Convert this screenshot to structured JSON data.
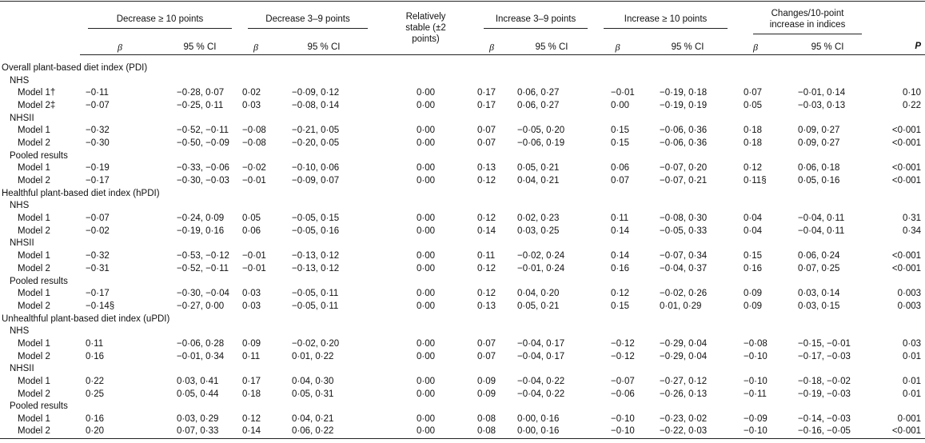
{
  "table": {
    "header": {
      "groups": [
        "Decrease ≥ 10 points",
        "Decrease 3–9 points",
        "Relatively stable (±2 points)",
        "Increase 3–9 points",
        "Increase ≥ 10 points",
        "Changes/10-point increase in indices",
        "P"
      ],
      "columns": [
        "β",
        "95 % CI",
        "β",
        "95 % CI",
        "β",
        "95 % CI",
        "β",
        "95 % CI",
        "β",
        "95 % CI"
      ]
    },
    "sections": [
      {
        "title": "Overall plant-based diet index (PDI)",
        "groups": [
          {
            "name": "NHS",
            "rows": [
              {
                "label": "Model 1†",
                "cells": [
                  "−0·11",
                  "−0·28, 0·07",
                  "0·02",
                  "−0·09, 0·12",
                  "0·00",
                  "0·17",
                  "0·06, 0·27",
                  "−0·01",
                  "−0·19, 0·18",
                  "0·07",
                  "−0·01, 0·14",
                  "0·10"
                ]
              },
              {
                "label": "Model 2‡",
                "cells": [
                  "−0·07",
                  "−0·25, 0·11",
                  "0·03",
                  "−0·08, 0·14",
                  "0·00",
                  "0·17",
                  "0·06, 0·27",
                  "0·00",
                  "−0·19, 0·19",
                  "0·05",
                  "−0·03, 0·13",
                  "0·22"
                ]
              }
            ]
          },
          {
            "name": "NHSII",
            "rows": [
              {
                "label": "Model 1",
                "cells": [
                  "−0·32",
                  "−0·52, −0·11",
                  "−0·08",
                  "−0·21, 0·05",
                  "0·00",
                  "0·07",
                  "−0·05, 0·20",
                  "0·15",
                  "−0·06, 0·36",
                  "0·18",
                  "0·09, 0·27",
                  "<0·001"
                ]
              },
              {
                "label": "Model 2",
                "cells": [
                  "−0·30",
                  "−0·50, −0·09",
                  "−0·08",
                  "−0·20, 0·05",
                  "0·00",
                  "0·07",
                  "−0·06, 0·19",
                  "0·15",
                  "−0·06, 0·36",
                  "0·18",
                  "0·09, 0·27",
                  "<0·001"
                ]
              }
            ]
          },
          {
            "name": "Pooled results",
            "rows": [
              {
                "label": "Model 1",
                "cells": [
                  "−0·19",
                  "−0·33, −0·06",
                  "−0·02",
                  "−0·10, 0·06",
                  "0·00",
                  "0·13",
                  "0·05, 0·21",
                  "0·06",
                  "−0·07, 0·20",
                  "0·12",
                  "0·06, 0·18",
                  "<0·001"
                ]
              },
              {
                "label": "Model 2",
                "cells": [
                  "−0·17",
                  "−0·30, −0·03",
                  "−0·01",
                  "−0·09, 0·07",
                  "0·00",
                  "0·12",
                  "0·04, 0·21",
                  "0·07",
                  "−0·07, 0·21",
                  "0·11§",
                  "0·05, 0·16",
                  "<0·001"
                ]
              }
            ]
          }
        ]
      },
      {
        "title": "Healthful plant-based diet index (hPDI)",
        "groups": [
          {
            "name": "NHS",
            "rows": [
              {
                "label": "Model 1",
                "cells": [
                  "−0·07",
                  "−0·24, 0·09",
                  "0·05",
                  "−0·05, 0·15",
                  "0·00",
                  "0·12",
                  "0·02, 0·23",
                  "0·11",
                  "−0·08, 0·30",
                  "0·04",
                  "−0·04, 0·11",
                  "0·31"
                ]
              },
              {
                "label": "Model 2",
                "cells": [
                  "−0·02",
                  "−0·19, 0·16",
                  "0·06",
                  "−0·05, 0·16",
                  "0·00",
                  "0·14",
                  "0·03, 0·25",
                  "0·14",
                  "−0·05, 0·33",
                  "0·04",
                  "−0·04, 0·11",
                  "0·34"
                ]
              }
            ]
          },
          {
            "name": "NHSII",
            "rows": [
              {
                "label": "Model 1",
                "cells": [
                  "−0·32",
                  "−0·53, −0·12",
                  "−0·01",
                  "−0·13, 0·12",
                  "0·00",
                  "0·11",
                  "−0·02, 0·24",
                  "0·14",
                  "−0·07, 0·34",
                  "0·15",
                  "0·06, 0·24",
                  "<0·001"
                ]
              },
              {
                "label": "Model 2",
                "cells": [
                  "−0·31",
                  "−0·52, −0·11",
                  "−0·01",
                  "−0·13, 0·12",
                  "0·00",
                  "0·12",
                  "−0·01, 0·24",
                  "0·16",
                  "−0·04, 0·37",
                  "0·16",
                  "0·07, 0·25",
                  "<0·001"
                ]
              }
            ]
          },
          {
            "name": "Pooled results",
            "rows": [
              {
                "label": "Model 1",
                "cells": [
                  "−0·17",
                  "−0·30, −0·04",
                  "0·03",
                  "−0·05, 0·11",
                  "0·00",
                  "0·12",
                  "0·04, 0·20",
                  "0·12",
                  "−0·02, 0·26",
                  "0·09",
                  "0·03, 0·14",
                  "0·003"
                ]
              },
              {
                "label": "Model 2",
                "cells": [
                  "−0·14§",
                  "−0·27, 0·00",
                  "0·03",
                  "−0·05, 0·11",
                  "0·00",
                  "0·13",
                  "0·05, 0·21",
                  "0·15",
                  "0·01, 0·29",
                  "0·09",
                  "0·03, 0·15",
                  "0·003"
                ]
              }
            ]
          }
        ]
      },
      {
        "title": "Unhealthful plant-based diet index (uPDI)",
        "groups": [
          {
            "name": "NHS",
            "rows": [
              {
                "label": "Model 1",
                "cells": [
                  "0·11",
                  "−0·06, 0·28",
                  "0·09",
                  "−0·02, 0·20",
                  "0·00",
                  "0·07",
                  "−0·04, 0·17",
                  "−0·12",
                  "−0·29, 0·04",
                  "−0·08",
                  "−0·15, −0·01",
                  "0·03"
                ]
              },
              {
                "label": "Model 2",
                "cells": [
                  "0·16",
                  "−0·01, 0·34",
                  "0·11",
                  "0·01, 0·22",
                  "0·00",
                  "0·07",
                  "−0·04, 0·17",
                  "−0·12",
                  "−0·29, 0·04",
                  "−0·10",
                  "−0·17, −0·03",
                  "0·01"
                ]
              }
            ]
          },
          {
            "name": "NHSII",
            "rows": [
              {
                "label": "Model 1",
                "cells": [
                  "0·22",
                  "0·03, 0·41",
                  "0·17",
                  "0·04, 0·30",
                  "0·00",
                  "0·09",
                  "−0·04, 0·22",
                  "−0·07",
                  "−0·27, 0·12",
                  "−0·10",
                  "−0·18, −0·02",
                  "0·01"
                ]
              },
              {
                "label": "Model 2",
                "cells": [
                  "0·25",
                  "0·05, 0·44",
                  "0·18",
                  "0·05, 0·31",
                  "0·00",
                  "0·09",
                  "−0·04, 0·22",
                  "−0·06",
                  "−0·26, 0·13",
                  "−0·11",
                  "−0·19, −0·03",
                  "0·01"
                ]
              }
            ]
          },
          {
            "name": "Pooled results",
            "rows": [
              {
                "label": "Model 1",
                "cells": [
                  "0·16",
                  "0·03, 0·29",
                  "0·12",
                  "0·04, 0·21",
                  "0·00",
                  "0·08",
                  "0·00, 0·16",
                  "−0·10",
                  "−0·23, 0·02",
                  "−0·09",
                  "−0·14, −0·03",
                  "0·001"
                ]
              },
              {
                "label": "Model 2",
                "cells": [
                  "0·20",
                  "0·07, 0·33",
                  "0·14",
                  "0·06, 0·22",
                  "0·00",
                  "0·08",
                  "0·00, 0·16",
                  "−0·10",
                  "−0·22, 0·03",
                  "−0·10",
                  "−0·16, −0·05",
                  "<0·001"
                ]
              }
            ]
          }
        ]
      }
    ]
  }
}
